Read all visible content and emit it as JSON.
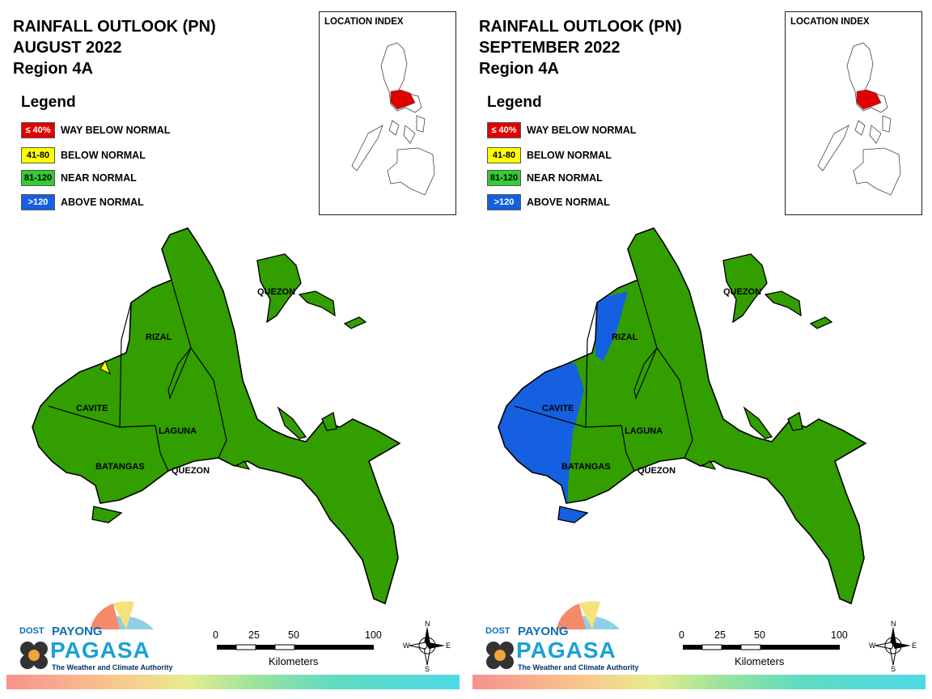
{
  "panels": [
    {
      "title_line1": "RAINFALL OUTLOOK (PN)",
      "title_line2": "AUGUST 2022",
      "title_line3": "Region 4A",
      "legend_title": "Legend",
      "legend": [
        {
          "code": "≤ 40%",
          "label": "WAY BELOW NORMAL",
          "color": "#e00000",
          "text_color": "#ffffff"
        },
        {
          "code": "41-80",
          "label": "BELOW NORMAL",
          "color": "#ffff00",
          "text_color": "#000000"
        },
        {
          "code": "81-120",
          "label": "NEAR NORMAL",
          "color": "#33cc33",
          "text_color": "#000000"
        },
        {
          "code": ">120",
          "label": "ABOVE NORMAL",
          "color": "#1560e0",
          "text_color": "#ffffff"
        }
      ],
      "location_index_title": "LOCATION INDEX",
      "provinces": [
        "QUEZON",
        "RIZAL",
        "CAVITE",
        "LAGUNA",
        "BATANGAS",
        "QUEZON"
      ],
      "scale": {
        "ticks": [
          "0",
          "25",
          "50",
          "100"
        ],
        "unit": "Kilometers"
      },
      "compass": {
        "n": "N",
        "s": "S",
        "e": "E",
        "w": "W"
      },
      "logo": {
        "dost": "DOST",
        "payong": "PAYONG",
        "pagasa": "PAGASA",
        "tagline": "The Weather and Climate Authority"
      }
    },
    {
      "title_line1": "RAINFALL OUTLOOK (PN)",
      "title_line2": "SEPTEMBER 2022",
      "title_line3": "Region 4A",
      "legend_title": "Legend",
      "legend": [
        {
          "code": "≤ 40%",
          "label": "WAY BELOW NORMAL",
          "color": "#e00000",
          "text_color": "#ffffff"
        },
        {
          "code": "41-80",
          "label": "BELOW NORMAL",
          "color": "#ffff00",
          "text_color": "#000000"
        },
        {
          "code": "81-120",
          "label": "NEAR NORMAL",
          "color": "#33cc33",
          "text_color": "#000000"
        },
        {
          "code": ">120",
          "label": "ABOVE NORMAL",
          "color": "#1560e0",
          "text_color": "#ffffff"
        }
      ],
      "location_index_title": "LOCATION INDEX",
      "provinces": [
        "QUEZON",
        "RIZAL",
        "CAVITE",
        "LAGUNA",
        "BATANGAS",
        "QUEZON"
      ],
      "scale": {
        "ticks": [
          "0",
          "25",
          "50",
          "100"
        ],
        "unit": "Kilometers"
      },
      "compass": {
        "n": "N",
        "s": "S",
        "e": "E",
        "w": "W"
      },
      "logo": {
        "dost": "DOST",
        "payong": "PAYONG",
        "pagasa": "PAGASA",
        "tagline": "The Weather and Climate Authority"
      }
    }
  ],
  "colors": {
    "land_near_normal": "#339e00",
    "above_normal": "#1560e0",
    "below_normal": "#ffff00",
    "highlight_region": "#e00000"
  }
}
